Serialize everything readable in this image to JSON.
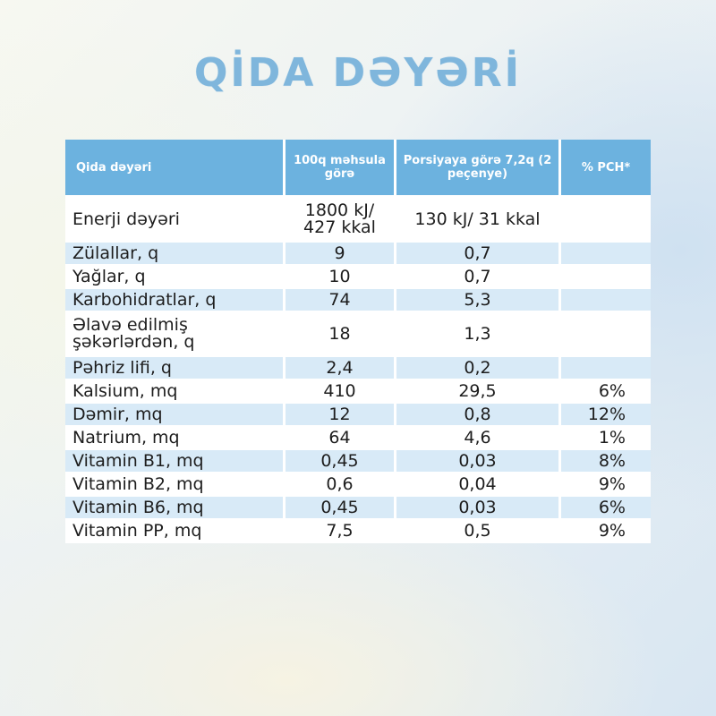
{
  "title": "QİDA DƏYƏRİ",
  "table": {
    "headers": [
      "Qida dəyəri",
      "100q məhsula görə",
      "Porsiyaya görə 7,2q (2 peçenye)",
      "% PCH*"
    ],
    "rows": [
      {
        "name": "Enerji dəyəri",
        "per100": "1800 kJ/ 427 kkal",
        "portion": "130 kJ/ 31 kkal",
        "pct": ""
      },
      {
        "name": "Zülallar, q",
        "per100": "9",
        "portion": "0,7",
        "pct": ""
      },
      {
        "name": "Yağlar, q",
        "per100": "10",
        "portion": "0,7",
        "pct": ""
      },
      {
        "name": "Karbohidratlar, q",
        "per100": "74",
        "portion": "5,3",
        "pct": ""
      },
      {
        "name": "Əlavə edilmiş şəkərlərdən, q",
        "per100": "18",
        "portion": "1,3",
        "pct": ""
      },
      {
        "name": "Pəhriz lifi, q",
        "per100": "2,4",
        "portion": "0,2",
        "pct": ""
      },
      {
        "name": "Kalsium, mq",
        "per100": "410",
        "portion": "29,5",
        "pct": "6%"
      },
      {
        "name": "Dəmir, mq",
        "per100": "12",
        "portion": "0,8",
        "pct": "12%"
      },
      {
        "name": "Natrium, mq",
        "per100": "64",
        "portion": "4,6",
        "pct": "1%"
      },
      {
        "name": "Vitamin B1, mq",
        "per100": "0,45",
        "portion": "0,03",
        "pct": "8%"
      },
      {
        "name": "Vitamin B2, mq",
        "per100": "0,6",
        "portion": "0,04",
        "pct": "9%"
      },
      {
        "name": "Vitamin B6, mq",
        "per100": "0,45",
        "portion": "0,03",
        "pct": "6%"
      },
      {
        "name": "Vitamin PP, mq",
        "per100": "7,5",
        "portion": "0,5",
        "pct": "9%"
      }
    ]
  },
  "colors": {
    "header_bg": "#6cb2df",
    "title": "#7fb6dc",
    "stripe": "#d8eaf7"
  }
}
